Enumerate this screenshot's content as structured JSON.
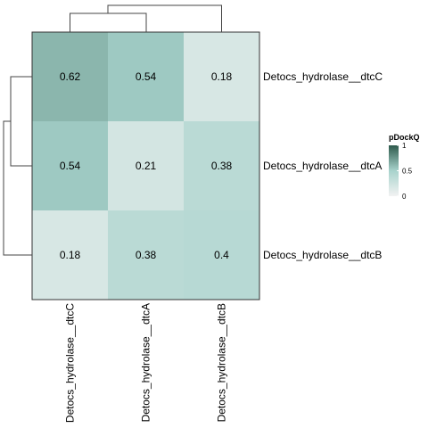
{
  "chart_data": {
    "type": "heatmap",
    "rows": [
      "Detocs_hydrolase__dtcC",
      "Detocs_hydrolase__dtcA",
      "Detocs_hydrolase__dtcB"
    ],
    "columns": [
      "Detocs_hydrolase__dtcC",
      "Detocs_hydrolase__dtcA",
      "Detocs_hydrolase__dtcB"
    ],
    "values": [
      [
        0.62,
        0.54,
        0.18
      ],
      [
        0.54,
        0.21,
        0.38
      ],
      [
        0.18,
        0.38,
        0.4
      ]
    ],
    "value_labels": [
      [
        "0.62",
        "0.54",
        "0.18"
      ],
      [
        "0.54",
        "0.21",
        "0.38"
      ],
      [
        "0.18",
        "0.38",
        "0.4"
      ]
    ],
    "legend": {
      "title": "pDockQ",
      "ticks": [
        "1",
        "0.5",
        "0"
      ],
      "tick_values": [
        1,
        0.5,
        0
      ],
      "range": [
        0,
        1
      ],
      "placement": "right"
    },
    "color_scale": {
      "low": "#f2f2f2",
      "mid": "#a8d3cc",
      "high": "#2e5a4c"
    },
    "dendrograms": {
      "rows": true,
      "columns": true
    }
  }
}
